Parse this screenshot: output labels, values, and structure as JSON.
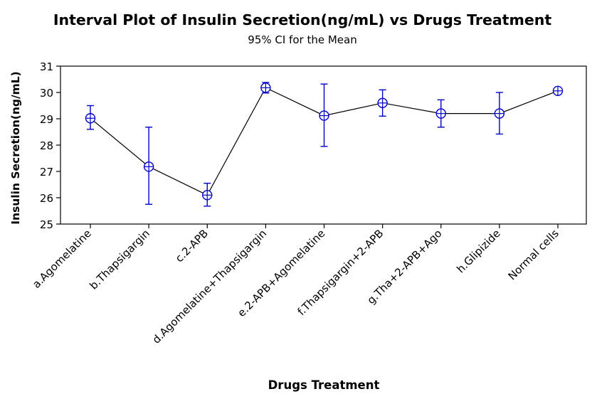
{
  "chart_data": {
    "type": "interval",
    "title": "Interval Plot of Insulin Secretion(ng/mL) vs Drugs Treatment",
    "subtitle": "95% CI for the Mean",
    "xlabel": "Drugs Treatment",
    "ylabel": "Insulin Secretion(ng/mL)",
    "ylim": [
      25,
      31
    ],
    "yticks": [
      25,
      26,
      27,
      28,
      29,
      30,
      31
    ],
    "categories": [
      "a.Agomelatine",
      "b.Thapsigargin",
      "c.2-APB",
      "d.Agomelatine+Thapsigargin",
      "e.2-APB+Agomelatine",
      "f.Thapsigargin+2-APB",
      "g.Tha+2-APB+Ago",
      "h.Glipizide",
      "Normal cells"
    ],
    "means": [
      29.02,
      27.18,
      26.1,
      30.18,
      29.12,
      29.6,
      29.2,
      29.2,
      30.06
    ],
    "ci_lower": [
      28.6,
      25.75,
      25.68,
      29.98,
      27.95,
      29.1,
      28.68,
      28.42,
      30.0
    ],
    "ci_upper": [
      29.5,
      28.68,
      26.55,
      30.38,
      30.32,
      30.1,
      29.72,
      30.0,
      30.12
    ],
    "grid": false,
    "legend": "none",
    "colors": {
      "marker": "#0000cc",
      "line": "#000000",
      "axis": "#000000"
    }
  }
}
